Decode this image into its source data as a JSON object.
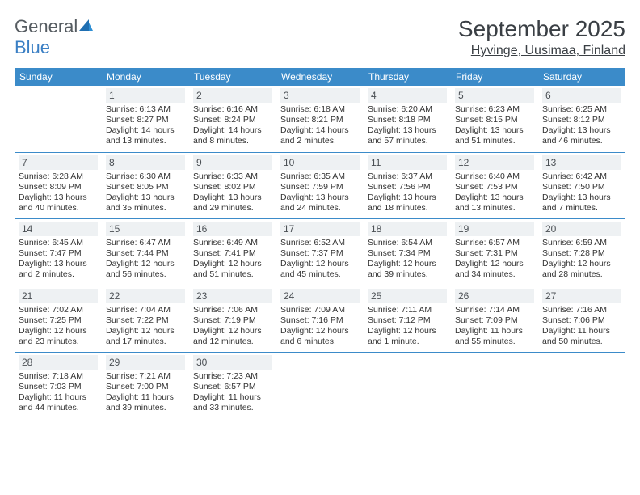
{
  "brand": {
    "name1": "General",
    "name2": "Blue"
  },
  "title": "September 2025",
  "location": "Hyvinge, Uusimaa, Finland",
  "colors": {
    "header_bg": "#3b8bc9",
    "header_text": "#ffffff",
    "daynum_bg": "#eef1f3",
    "daynum_text": "#4a4f54",
    "body_text": "#333333",
    "rule": "#3b8bc9",
    "page_bg": "#ffffff",
    "brand_gray": "#555b60",
    "brand_blue": "#3a7fc4"
  },
  "font": {
    "family": "Arial",
    "title_size": 28,
    "location_size": 16,
    "header_size": 12,
    "cell_size": 10.5
  },
  "days_of_week": [
    "Sunday",
    "Monday",
    "Tuesday",
    "Wednesday",
    "Thursday",
    "Friday",
    "Saturday"
  ],
  "weeks": [
    [
      null,
      {
        "n": "1",
        "sunrise": "Sunrise: 6:13 AM",
        "sunset": "Sunset: 8:27 PM",
        "daylight": "Daylight: 14 hours and 13 minutes."
      },
      {
        "n": "2",
        "sunrise": "Sunrise: 6:16 AM",
        "sunset": "Sunset: 8:24 PM",
        "daylight": "Daylight: 14 hours and 8 minutes."
      },
      {
        "n": "3",
        "sunrise": "Sunrise: 6:18 AM",
        "sunset": "Sunset: 8:21 PM",
        "daylight": "Daylight: 14 hours and 2 minutes."
      },
      {
        "n": "4",
        "sunrise": "Sunrise: 6:20 AM",
        "sunset": "Sunset: 8:18 PM",
        "daylight": "Daylight: 13 hours and 57 minutes."
      },
      {
        "n": "5",
        "sunrise": "Sunrise: 6:23 AM",
        "sunset": "Sunset: 8:15 PM",
        "daylight": "Daylight: 13 hours and 51 minutes."
      },
      {
        "n": "6",
        "sunrise": "Sunrise: 6:25 AM",
        "sunset": "Sunset: 8:12 PM",
        "daylight": "Daylight: 13 hours and 46 minutes."
      }
    ],
    [
      {
        "n": "7",
        "sunrise": "Sunrise: 6:28 AM",
        "sunset": "Sunset: 8:09 PM",
        "daylight": "Daylight: 13 hours and 40 minutes."
      },
      {
        "n": "8",
        "sunrise": "Sunrise: 6:30 AM",
        "sunset": "Sunset: 8:05 PM",
        "daylight": "Daylight: 13 hours and 35 minutes."
      },
      {
        "n": "9",
        "sunrise": "Sunrise: 6:33 AM",
        "sunset": "Sunset: 8:02 PM",
        "daylight": "Daylight: 13 hours and 29 minutes."
      },
      {
        "n": "10",
        "sunrise": "Sunrise: 6:35 AM",
        "sunset": "Sunset: 7:59 PM",
        "daylight": "Daylight: 13 hours and 24 minutes."
      },
      {
        "n": "11",
        "sunrise": "Sunrise: 6:37 AM",
        "sunset": "Sunset: 7:56 PM",
        "daylight": "Daylight: 13 hours and 18 minutes."
      },
      {
        "n": "12",
        "sunrise": "Sunrise: 6:40 AM",
        "sunset": "Sunset: 7:53 PM",
        "daylight": "Daylight: 13 hours and 13 minutes."
      },
      {
        "n": "13",
        "sunrise": "Sunrise: 6:42 AM",
        "sunset": "Sunset: 7:50 PM",
        "daylight": "Daylight: 13 hours and 7 minutes."
      }
    ],
    [
      {
        "n": "14",
        "sunrise": "Sunrise: 6:45 AM",
        "sunset": "Sunset: 7:47 PM",
        "daylight": "Daylight: 13 hours and 2 minutes."
      },
      {
        "n": "15",
        "sunrise": "Sunrise: 6:47 AM",
        "sunset": "Sunset: 7:44 PM",
        "daylight": "Daylight: 12 hours and 56 minutes."
      },
      {
        "n": "16",
        "sunrise": "Sunrise: 6:49 AM",
        "sunset": "Sunset: 7:41 PM",
        "daylight": "Daylight: 12 hours and 51 minutes."
      },
      {
        "n": "17",
        "sunrise": "Sunrise: 6:52 AM",
        "sunset": "Sunset: 7:37 PM",
        "daylight": "Daylight: 12 hours and 45 minutes."
      },
      {
        "n": "18",
        "sunrise": "Sunrise: 6:54 AM",
        "sunset": "Sunset: 7:34 PM",
        "daylight": "Daylight: 12 hours and 39 minutes."
      },
      {
        "n": "19",
        "sunrise": "Sunrise: 6:57 AM",
        "sunset": "Sunset: 7:31 PM",
        "daylight": "Daylight: 12 hours and 34 minutes."
      },
      {
        "n": "20",
        "sunrise": "Sunrise: 6:59 AM",
        "sunset": "Sunset: 7:28 PM",
        "daylight": "Daylight: 12 hours and 28 minutes."
      }
    ],
    [
      {
        "n": "21",
        "sunrise": "Sunrise: 7:02 AM",
        "sunset": "Sunset: 7:25 PM",
        "daylight": "Daylight: 12 hours and 23 minutes."
      },
      {
        "n": "22",
        "sunrise": "Sunrise: 7:04 AM",
        "sunset": "Sunset: 7:22 PM",
        "daylight": "Daylight: 12 hours and 17 minutes."
      },
      {
        "n": "23",
        "sunrise": "Sunrise: 7:06 AM",
        "sunset": "Sunset: 7:19 PM",
        "daylight": "Daylight: 12 hours and 12 minutes."
      },
      {
        "n": "24",
        "sunrise": "Sunrise: 7:09 AM",
        "sunset": "Sunset: 7:16 PM",
        "daylight": "Daylight: 12 hours and 6 minutes."
      },
      {
        "n": "25",
        "sunrise": "Sunrise: 7:11 AM",
        "sunset": "Sunset: 7:12 PM",
        "daylight": "Daylight: 12 hours and 1 minute."
      },
      {
        "n": "26",
        "sunrise": "Sunrise: 7:14 AM",
        "sunset": "Sunset: 7:09 PM",
        "daylight": "Daylight: 11 hours and 55 minutes."
      },
      {
        "n": "27",
        "sunrise": "Sunrise: 7:16 AM",
        "sunset": "Sunset: 7:06 PM",
        "daylight": "Daylight: 11 hours and 50 minutes."
      }
    ],
    [
      {
        "n": "28",
        "sunrise": "Sunrise: 7:18 AM",
        "sunset": "Sunset: 7:03 PM",
        "daylight": "Daylight: 11 hours and 44 minutes."
      },
      {
        "n": "29",
        "sunrise": "Sunrise: 7:21 AM",
        "sunset": "Sunset: 7:00 PM",
        "daylight": "Daylight: 11 hours and 39 minutes."
      },
      {
        "n": "30",
        "sunrise": "Sunrise: 7:23 AM",
        "sunset": "Sunset: 6:57 PM",
        "daylight": "Daylight: 11 hours and 33 minutes."
      },
      null,
      null,
      null,
      null
    ]
  ]
}
